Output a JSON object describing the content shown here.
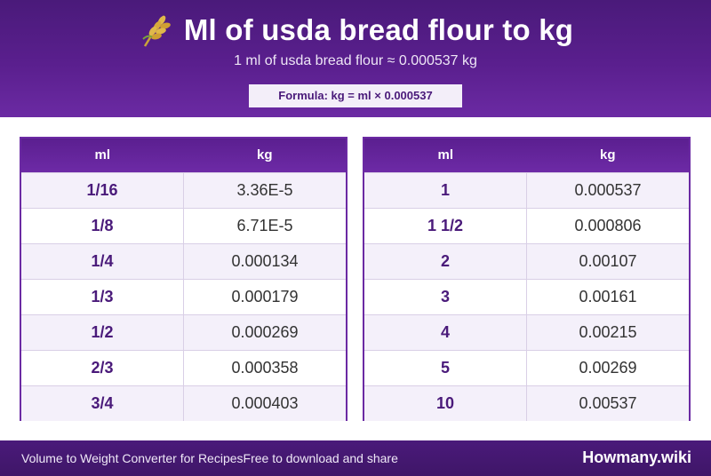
{
  "header": {
    "icon": "wheat-icon",
    "title": "Ml of usda bread flour to kg",
    "subtitle": "1 ml of usda bread flour ≈ 0.000537 kg",
    "formula": "Formula: kg = ml × 0.000537"
  },
  "tables": [
    {
      "headers": [
        "ml",
        "kg"
      ],
      "rows": [
        [
          "1/16",
          "3.36E-5"
        ],
        [
          "1/8",
          "6.71E-5"
        ],
        [
          "1/4",
          "0.000134"
        ],
        [
          "1/3",
          "0.000179"
        ],
        [
          "1/2",
          "0.000269"
        ],
        [
          "2/3",
          "0.000358"
        ],
        [
          "3/4",
          "0.000403"
        ]
      ]
    },
    {
      "headers": [
        "ml",
        "kg"
      ],
      "rows": [
        [
          "1",
          "0.000537"
        ],
        [
          "1 1/2",
          "0.000806"
        ],
        [
          "2",
          "0.00107"
        ],
        [
          "3",
          "0.00161"
        ],
        [
          "4",
          "0.00215"
        ],
        [
          "5",
          "0.00269"
        ],
        [
          "10",
          "0.00537"
        ]
      ]
    }
  ],
  "footer": {
    "left": "Volume to Weight Converter for RecipesFree to download and share",
    "brand": "Howmany.wiki"
  },
  "colors": {
    "primary": "#5a1f8e",
    "accent_light": "#f3eef9"
  }
}
